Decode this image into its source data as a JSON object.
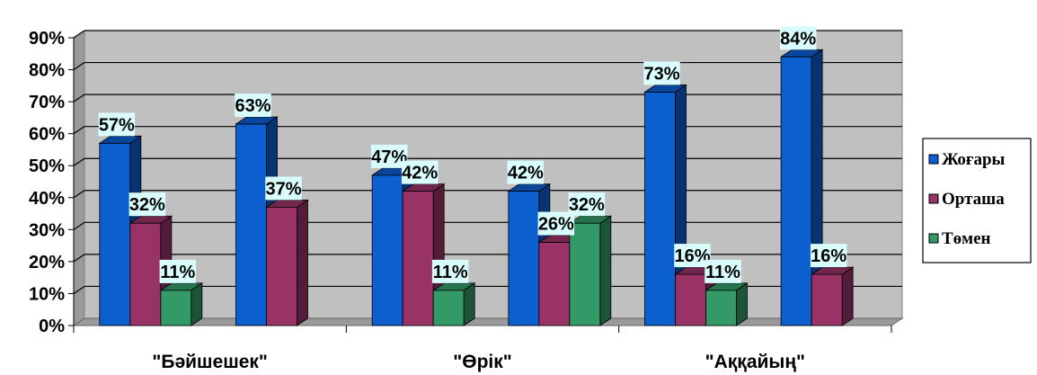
{
  "chart_data": {
    "type": "bar",
    "categories": [
      "\"Бәйшешек\"",
      "",
      "\"Өрік\"",
      "",
      "\"Аққайың\"",
      ""
    ],
    "series": [
      {
        "name": "Жоғары",
        "color": "#0b5fcf",
        "values": [
          57,
          63,
          47,
          42,
          73,
          84
        ]
      },
      {
        "name": "Орташа",
        "color": "#993366",
        "values": [
          32,
          37,
          42,
          26,
          16,
          16
        ]
      },
      {
        "name": "Төмен",
        "color": "#339966",
        "values": [
          11,
          null,
          11,
          32,
          11,
          null
        ]
      }
    ],
    "value_suffix": "%",
    "ylim": [
      0,
      90
    ],
    "yticks": [
      "0%",
      "10%",
      "20%",
      "30%",
      "40%",
      "50%",
      "60%",
      "70%",
      "80%",
      "90%"
    ],
    "grid": true,
    "legend": "right",
    "style": "3d-clustered-column"
  }
}
